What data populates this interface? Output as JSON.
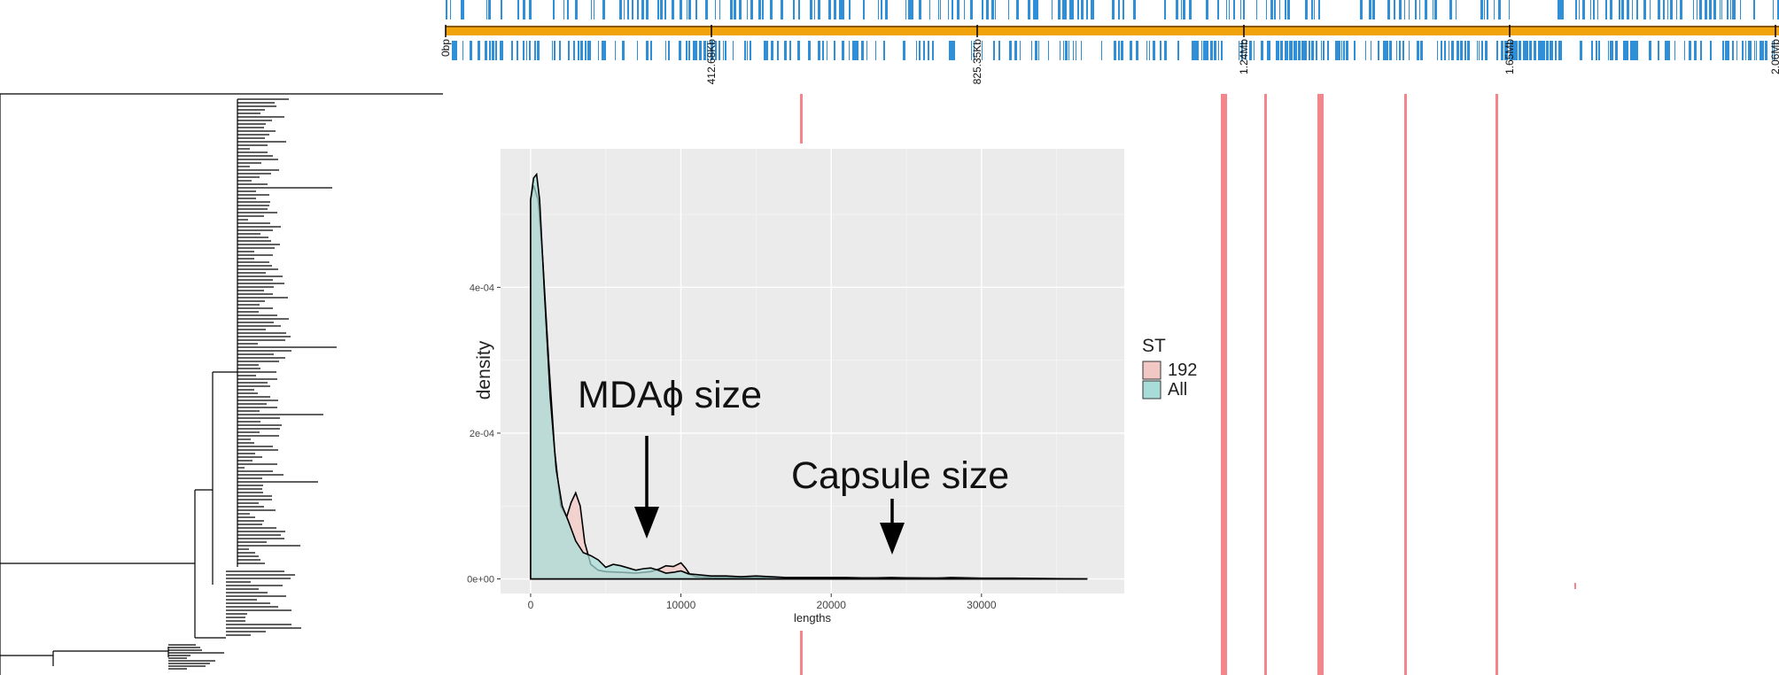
{
  "colors": {
    "track": "#f0a30a",
    "gene": "#2f8fd8",
    "recomb": "#f4858b",
    "fill_192": "#f2c8c4",
    "fill_all": "#a8dcd8",
    "panel_bg": "#ebebeb",
    "grid": "#ffffff",
    "tree": "#000000"
  },
  "genome_track": {
    "tick_labels": [
      "0bp",
      "412.68Kb",
      "825.35Kb",
      "1.24Mb",
      "1.65Mb",
      "2.06Mb"
    ]
  },
  "recombination_bands": {
    "note_free_shapes": true
  },
  "chart_data": {
    "type": "area",
    "title": "",
    "xlabel": "lengths",
    "ylabel": "density",
    "xlim": [
      -2000,
      39500
    ],
    "ylim": [
      -2e-05,
      0.00059
    ],
    "x_ticks": [
      0,
      10000,
      20000,
      30000
    ],
    "x_tick_labels": [
      "0",
      "10000",
      "20000",
      "30000"
    ],
    "y_ticks": [
      0,
      0.0002,
      0.0004
    ],
    "y_tick_labels": [
      "0e+00",
      "2e-04",
      "4e-04"
    ],
    "grid": true,
    "legend": {
      "title": "ST",
      "position": "right",
      "entries": [
        "192",
        "All"
      ]
    },
    "series": [
      {
        "name": "192",
        "x": [
          0,
          200,
          500,
          800,
          1200,
          1600,
          2000,
          2400,
          2700,
          3000,
          3300,
          3600,
          4000,
          4500,
          5000,
          6000,
          7000,
          8000,
          8600,
          9000,
          9500,
          10000,
          10300,
          10600,
          11000,
          12000,
          14000,
          17000,
          20000,
          24000,
          28000,
          32000,
          37000
        ],
        "values": [
          0.00052,
          0.00054,
          0.00052,
          0.00044,
          0.0003,
          0.000175,
          0.0001,
          8.5e-05,
          0.000105,
          0.000118,
          0.0001,
          5e-05,
          2e-05,
          1.2e-05,
          1e-05,
          9e-06,
          8e-06,
          1e-05,
          1.4e-05,
          1.8e-05,
          1.7e-05,
          2.2e-05,
          1.5e-05,
          6e-06,
          3e-06,
          2e-06,
          2e-06,
          1.5e-06,
          1e-06,
          1.5e-06,
          1e-06,
          5e-07,
          0
        ]
      },
      {
        "name": "All",
        "x": [
          0,
          200,
          400,
          600,
          900,
          1300,
          1700,
          2100,
          2500,
          3000,
          3500,
          4000,
          4500,
          5000,
          5500,
          6000,
          6500,
          7000,
          7500,
          8000,
          8500,
          9000,
          9500,
          10000,
          10500,
          11000,
          12000,
          13000,
          14000,
          15000,
          16000,
          17000,
          18000,
          19000,
          20000,
          21000,
          22000,
          23000,
          24000,
          25000,
          26000,
          27000,
          28000,
          30000,
          32000,
          34000,
          37000
        ],
        "values": [
          0.00052,
          0.00055,
          0.000555,
          0.00052,
          0.0004,
          0.00025,
          0.00015,
          0.0001,
          8e-05,
          5.2e-05,
          3.6e-05,
          3.2e-05,
          2.6e-05,
          1.6e-05,
          2e-05,
          1.8e-05,
          1.5e-05,
          1.2e-05,
          1.4e-05,
          1.5e-05,
          1.2e-05,
          8e-06,
          9e-06,
          1.1e-05,
          7e-06,
          6e-06,
          4e-06,
          4e-06,
          3e-06,
          4e-06,
          3e-06,
          2e-06,
          2e-06,
          2e-06,
          2e-06,
          2e-06,
          1.5e-06,
          1.5e-06,
          2e-06,
          1.5e-06,
          1e-06,
          1e-06,
          2e-06,
          1e-06,
          1e-06,
          5e-07,
          0
        ]
      }
    ],
    "annotations": [
      {
        "text": "MDAϕ size",
        "x": 8000
      },
      {
        "text": "Capsule size",
        "x": 24000
      }
    ]
  }
}
